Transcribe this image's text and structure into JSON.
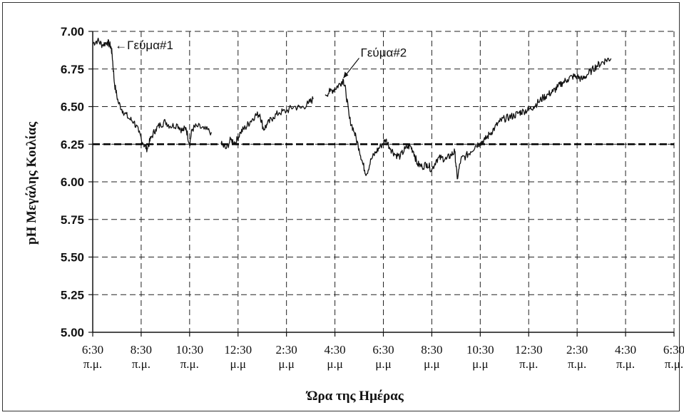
{
  "chart_data": {
    "type": "line",
    "title": "",
    "xlabel": "Ώρα της Ημέρας",
    "ylabel": "pH Μεγάλης Κοιλίας",
    "ylim": [
      5.0,
      7.0
    ],
    "y_ticks": [
      "5.00",
      "5.25",
      "5.50",
      "5.75",
      "6.00",
      "6.25",
      "6.50",
      "6.75",
      "7.00"
    ],
    "x_ticks": [
      {
        "time": "6:30",
        "period": "π.μ."
      },
      {
        "time": "8:30",
        "period": "π.μ."
      },
      {
        "time": "10:30",
        "period": "π.μ."
      },
      {
        "time": "12:30",
        "period": "μ.μ"
      },
      {
        "time": "2:30",
        "period": "μ.μ"
      },
      {
        "time": "4:30",
        "period": "μ.μ"
      },
      {
        "time": "6:30",
        "period": "μ.μ"
      },
      {
        "time": "8:30",
        "period": "μ.μ"
      },
      {
        "time": "10:30",
        "period": "μ.μ"
      },
      {
        "time": "12:30",
        "period": "π.μ."
      },
      {
        "time": "2:30",
        "period": "π.μ."
      },
      {
        "time": "4:30",
        "period": "π.μ."
      },
      {
        "time": "6:30",
        "period": "π.μ."
      }
    ],
    "x_unit": "hours since 6:30 π.μ.",
    "xlim": [
      0,
      24
    ],
    "grid": true,
    "reference_line": 6.25,
    "series": [
      {
        "points": [
          [
            0.0,
            6.92
          ],
          [
            0.2,
            6.94
          ],
          [
            0.4,
            6.91
          ],
          [
            0.6,
            6.93
          ],
          [
            0.75,
            6.9
          ],
          [
            0.8,
            6.85
          ],
          [
            0.9,
            6.65
          ],
          [
            1.05,
            6.53
          ],
          [
            1.25,
            6.47
          ],
          [
            1.5,
            6.42
          ],
          [
            1.7,
            6.4
          ],
          [
            1.9,
            6.33
          ],
          [
            2.1,
            6.25
          ],
          [
            2.25,
            6.22
          ],
          [
            2.4,
            6.29
          ],
          [
            2.6,
            6.35
          ],
          [
            2.8,
            6.38
          ],
          [
            3.0,
            6.4
          ],
          [
            3.2,
            6.37
          ],
          [
            3.5,
            6.38
          ],
          [
            3.7,
            6.34
          ],
          [
            3.85,
            6.36
          ],
          [
            4.0,
            6.25
          ],
          [
            4.1,
            6.35
          ],
          [
            4.3,
            6.37
          ],
          [
            4.6,
            6.35
          ],
          [
            4.9,
            6.33
          ]
        ]
      },
      {
        "points": [
          [
            5.3,
            6.25
          ],
          [
            5.5,
            6.22
          ],
          [
            5.7,
            6.28
          ],
          [
            5.9,
            6.26
          ],
          [
            6.1,
            6.33
          ],
          [
            6.3,
            6.36
          ],
          [
            6.5,
            6.4
          ],
          [
            6.7,
            6.44
          ],
          [
            6.9,
            6.45
          ],
          [
            7.05,
            6.35
          ],
          [
            7.2,
            6.38
          ],
          [
            7.45,
            6.43
          ],
          [
            7.7,
            6.46
          ],
          [
            8.0,
            6.47
          ],
          [
            8.3,
            6.5
          ],
          [
            8.6,
            6.49
          ],
          [
            8.9,
            6.52
          ],
          [
            9.1,
            6.55
          ]
        ]
      },
      {
        "points": [
          [
            9.6,
            6.58
          ],
          [
            9.8,
            6.6
          ],
          [
            10.0,
            6.62
          ],
          [
            10.2,
            6.65
          ],
          [
            10.35,
            6.68
          ],
          [
            10.45,
            6.6
          ],
          [
            10.6,
            6.42
          ],
          [
            10.8,
            6.33
          ],
          [
            11.0,
            6.22
          ],
          [
            11.15,
            6.12
          ],
          [
            11.3,
            6.05
          ],
          [
            11.5,
            6.15
          ],
          [
            11.7,
            6.2
          ],
          [
            11.9,
            6.24
          ],
          [
            12.1,
            6.28
          ],
          [
            12.3,
            6.22
          ],
          [
            12.5,
            6.18
          ],
          [
            12.7,
            6.17
          ],
          [
            12.9,
            6.22
          ],
          [
            13.1,
            6.24
          ],
          [
            13.25,
            6.2
          ],
          [
            13.4,
            6.12
          ],
          [
            13.6,
            6.1
          ],
          [
            13.8,
            6.12
          ],
          [
            14.0,
            6.08
          ],
          [
            14.2,
            6.15
          ],
          [
            14.4,
            6.16
          ],
          [
            14.6,
            6.15
          ],
          [
            14.8,
            6.18
          ],
          [
            14.95,
            6.2
          ],
          [
            15.05,
            6.02
          ],
          [
            15.2,
            6.15
          ],
          [
            15.4,
            6.17
          ],
          [
            15.6,
            6.2
          ],
          [
            15.8,
            6.24
          ],
          [
            16.0,
            6.26
          ],
          [
            16.2,
            6.28
          ],
          [
            16.4,
            6.32
          ],
          [
            16.6,
            6.36
          ],
          [
            16.8,
            6.4
          ],
          [
            17.0,
            6.42
          ],
          [
            17.2,
            6.43
          ],
          [
            17.4,
            6.44
          ],
          [
            17.6,
            6.46
          ],
          [
            17.8,
            6.47
          ],
          [
            18.0,
            6.48
          ],
          [
            18.2,
            6.5
          ],
          [
            18.4,
            6.53
          ],
          [
            18.6,
            6.56
          ],
          [
            18.8,
            6.58
          ],
          [
            19.0,
            6.6
          ],
          [
            19.2,
            6.63
          ],
          [
            19.4,
            6.66
          ],
          [
            19.6,
            6.68
          ],
          [
            19.8,
            6.7
          ],
          [
            20.0,
            6.7
          ],
          [
            20.2,
            6.68
          ],
          [
            20.4,
            6.71
          ],
          [
            20.6,
            6.74
          ],
          [
            20.8,
            6.77
          ],
          [
            21.0,
            6.79
          ],
          [
            21.2,
            6.81
          ],
          [
            21.4,
            6.82
          ]
        ]
      }
    ],
    "annotations": [
      {
        "text": "←Γεύμα#1",
        "x": 0.8,
        "y": 6.92
      },
      {
        "text": "Γεύμα#2",
        "x": 10.35,
        "y": 6.68
      }
    ]
  },
  "style": {
    "line_color": "#111111",
    "grid_color": "#222222",
    "axis_color": "#111111"
  }
}
